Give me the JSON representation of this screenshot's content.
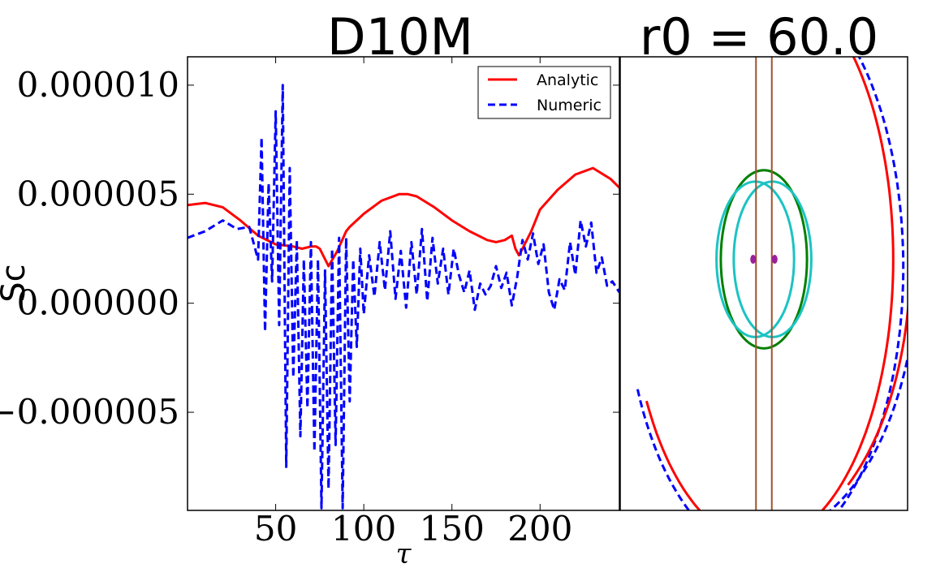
{
  "chart_data": [
    {
      "type": "line",
      "title": "D10M",
      "xlabel": "τ",
      "ylabel": "Sc",
      "xlim": [
        0,
        245
      ],
      "ylim": [
        -9.5e-06,
        1.13e-05
      ],
      "xticks": [
        50,
        100,
        150,
        200
      ],
      "xtick_labels": [
        "50",
        "100",
        "150",
        "200"
      ],
      "yticks": [
        1e-05,
        5e-06,
        0.0,
        -5e-06
      ],
      "ytick_labels": [
        "0.000010",
        "0.000005",
        "0.000000",
        "−0.000005"
      ],
      "legend": {
        "placement": "upper-right",
        "entries": [
          "Analytic",
          "Numeric"
        ]
      },
      "series": [
        {
          "name": "Analytic",
          "color": "#ff0000",
          "style": "solid",
          "x": [
            0,
            10,
            20,
            30,
            40,
            50,
            60,
            65,
            70,
            73,
            75,
            80,
            85,
            90,
            92,
            100,
            110,
            120,
            125,
            130,
            140,
            150,
            160,
            170,
            175,
            180,
            184,
            186,
            188,
            190,
            195,
            200,
            210,
            220,
            230,
            240,
            245
          ],
          "y": [
            4.5e-06,
            4.6e-06,
            4.4e-06,
            3.8e-06,
            3.1e-06,
            2.7e-06,
            2.6e-06,
            2.5e-06,
            2.6e-06,
            2.6e-06,
            2.5e-06,
            1.7e-06,
            2.4e-06,
            3.3e-06,
            3.5e-06,
            4.1e-06,
            4.7e-06,
            5e-06,
            5e-06,
            4.9e-06,
            4.4e-06,
            3.8e-06,
            3.3e-06,
            2.9e-06,
            2.8e-06,
            2.9e-06,
            3.1e-06,
            2.5e-06,
            2.2e-06,
            2.5e-06,
            3.3e-06,
            4.3e-06,
            5.2e-06,
            5.9e-06,
            6.2e-06,
            5.7e-06,
            5.3e-06
          ]
        },
        {
          "name": "Numeric",
          "color": "#0000ff",
          "style": "dashed",
          "x": [
            0,
            10,
            20,
            28,
            35,
            40,
            42,
            44,
            46,
            48,
            50,
            52,
            54,
            56,
            58,
            60,
            62,
            64,
            66,
            68,
            70,
            72,
            74,
            76,
            78,
            80,
            82,
            84,
            86,
            88,
            90,
            92,
            94,
            96,
            98,
            100,
            103,
            106,
            109,
            112,
            115,
            118,
            121,
            124,
            127,
            130,
            133,
            136,
            139,
            142,
            145,
            148,
            151,
            154,
            157,
            160,
            163,
            166,
            169,
            172,
            175,
            178,
            181,
            184,
            187,
            190,
            193,
            196,
            199,
            202,
            205,
            208,
            211,
            214,
            217,
            220,
            223,
            226,
            229,
            232,
            235,
            238,
            241,
            245
          ],
          "y": [
            3e-06,
            3.3e-06,
            3.8e-06,
            3.4e-06,
            3.5e-06,
            2e-06,
            7.6e-06,
            -1.3e-06,
            5.5e-06,
            1e-06,
            8.8e-06,
            -1e-06,
            1e-05,
            -7.5e-06,
            6.2e-06,
            -3.4e-06,
            2.9e-06,
            -6.1e-06,
            2e-06,
            -4.8e-06,
            2.8e-06,
            -6.8e-06,
            2e-06,
            -9.4e-06,
            1.5e-06,
            -8.5e-06,
            2.5e-06,
            -6.5e-06,
            3e-06,
            -9.4e-06,
            3e-06,
            -4.5e-06,
            2e-06,
            -2e-06,
            2.5e-06,
            -5e-07,
            2.2e-06,
            3e-07,
            2.8e-06,
            6e-07,
            3.3e-06,
            2e-07,
            2.4e-06,
            -2e-07,
            2.8e-06,
            4e-07,
            3.4e-06,
            1e-07,
            3e-06,
            9e-07,
            2.5e-06,
            4e-07,
            2.5e-06,
            1.3e-06,
            5e-07,
            1.5e-06,
            -3e-07,
            9e-07,
            4e-07,
            8e-07,
            1.7e-06,
            7e-07,
            1.4e-06,
            -1e-07,
            1.2e-06,
            2.9e-06,
            2e-06,
            3.2e-06,
            1.8e-06,
            2.7e-06,
            5e-07,
            -3e-07,
            1.1e-06,
            6e-07,
            2.8e-06,
            1.3e-06,
            3.8e-06,
            2.6e-06,
            3.7e-06,
            1.4e-06,
            2.1e-06,
            8e-07,
            1e-06,
            5e-07
          ]
        }
      ]
    },
    {
      "type": "line",
      "title": "r0 = 60.0",
      "xlim": [
        -100,
        100
      ],
      "ylim": [
        -140,
        140
      ],
      "axes_visible": false,
      "series": [
        {
          "name": "outer orbit (analytic)",
          "color": "#ff0000",
          "style": "solid",
          "shape": "ellipse-arc",
          "cx": -2,
          "cy": 15,
          "rx": 92,
          "ry": 175,
          "start_deg": 210,
          "end_deg": 478
        },
        {
          "name": "outer orbit (numeric)",
          "color": "#0000ff",
          "style": "dashed",
          "shape": "ellipse-arc",
          "cx": 0,
          "cy": 10,
          "rx": 97,
          "ry": 178,
          "start_deg": 205,
          "end_deg": 463
        },
        {
          "name": "tail (analytic)",
          "color": "#ff0000",
          "style": "solid",
          "shape": "ellipse-arc",
          "cx": 0,
          "cy": 15,
          "rx": 102,
          "ry": 170,
          "start_deg": 305,
          "end_deg": 360
        },
        {
          "name": "tail (numeric)",
          "color": "#0000ff",
          "style": "dashed",
          "shape": "ellipse-arc",
          "cx": 0,
          "cy": 15,
          "rx": 107,
          "ry": 172,
          "start_deg": 290,
          "end_deg": 360
        },
        {
          "name": "green ellipse",
          "color": "#008000",
          "style": "solid",
          "shape": "ellipse",
          "cx": 0,
          "cy": 15,
          "rx": 30,
          "ry": 55
        },
        {
          "name": "cyan ellipse A",
          "color": "#1cc3c3",
          "style": "solid",
          "shape": "ellipse",
          "cx": -6,
          "cy": 15,
          "rx": 27,
          "ry": 48
        },
        {
          "name": "cyan ellipse B",
          "color": "#1cc3c3",
          "style": "solid",
          "shape": "ellipse",
          "cx": 6,
          "cy": 15,
          "rx": 27,
          "ry": 48
        },
        {
          "name": "brown line A",
          "color": "#a0522d",
          "style": "solid",
          "shape": "vline",
          "x": -5.5
        },
        {
          "name": "brown line B",
          "color": "#a0522d",
          "style": "solid",
          "shape": "vline",
          "x": 5.5
        },
        {
          "name": "purple body A",
          "color": "#9b1f9b",
          "style": "solid",
          "shape": "dot",
          "x": -7.5,
          "y": 15
        },
        {
          "name": "purple body B",
          "color": "#9b1f9b",
          "style": "solid",
          "shape": "dot",
          "x": 7.5,
          "y": 15
        }
      ]
    }
  ]
}
